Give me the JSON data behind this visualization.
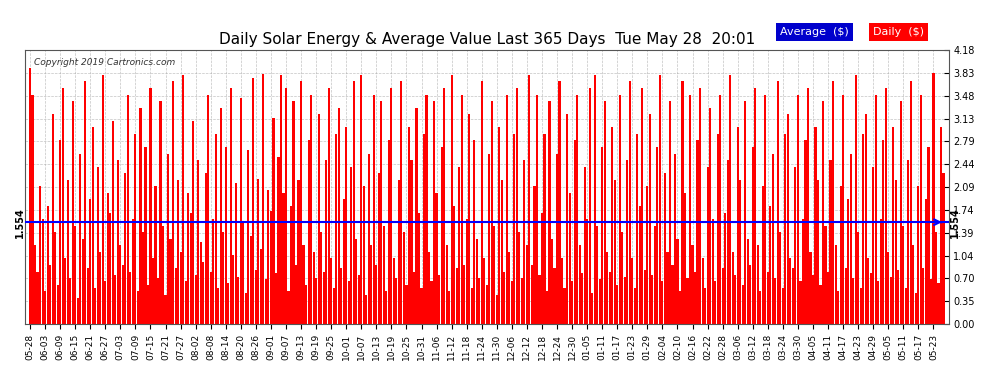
{
  "title": "Daily Solar Energy & Average Value Last 365 Days  Tue May 28  20:01",
  "copyright": "Copyright 2019 Cartronics.com",
  "average_value": 1.554,
  "average_label": "1.554",
  "bar_color": "#FF0000",
  "average_line_color": "#0000FF",
  "background_color": "#FFFFFF",
  "plot_bg_color": "#FFFFFF",
  "grid_color": "#AAAAAA",
  "ylim": [
    0.0,
    4.18
  ],
  "yticks": [
    0.0,
    0.35,
    0.7,
    1.04,
    1.39,
    1.74,
    2.09,
    2.44,
    2.79,
    3.13,
    3.48,
    3.83,
    4.18
  ],
  "legend_avg_color": "#0000CC",
  "legend_daily_color": "#FF0000",
  "legend_text_color": "#FFFFFF",
  "x_labels": [
    "05-28",
    "06-03",
    "06-09",
    "06-15",
    "06-21",
    "06-27",
    "07-03",
    "07-09",
    "07-15",
    "07-21",
    "07-27",
    "08-02",
    "08-08",
    "08-14",
    "08-20",
    "08-26",
    "09-01",
    "09-07",
    "09-13",
    "09-19",
    "09-25",
    "10-01",
    "10-07",
    "10-13",
    "10-19",
    "10-25",
    "10-31",
    "11-06",
    "11-12",
    "11-18",
    "11-24",
    "11-30",
    "12-06",
    "12-12",
    "12-18",
    "12-24",
    "12-30",
    "01-05",
    "01-11",
    "01-17",
    "01-23",
    "01-29",
    "02-04",
    "02-10",
    "02-16",
    "02-22",
    "02-28",
    "03-06",
    "03-12",
    "03-18",
    "03-24",
    "03-30",
    "04-05",
    "04-11",
    "04-17",
    "04-23",
    "04-29",
    "05-05",
    "05-11",
    "05-17",
    "05-23"
  ],
  "daily_values": [
    3.9,
    3.5,
    1.2,
    0.8,
    2.1,
    1.6,
    0.5,
    1.8,
    0.9,
    3.2,
    1.4,
    0.6,
    2.8,
    3.6,
    1.0,
    2.2,
    0.7,
    3.4,
    1.5,
    0.4,
    2.6,
    1.3,
    3.7,
    0.85,
    1.9,
    3.0,
    0.55,
    2.4,
    1.1,
    3.8,
    0.65,
    2.0,
    1.7,
    3.1,
    0.75,
    2.5,
    1.2,
    0.9,
    2.3,
    3.5,
    0.8,
    1.6,
    2.9,
    0.5,
    3.3,
    1.4,
    2.7,
    0.6,
    3.6,
    1.0,
    2.1,
    0.7,
    3.4,
    1.5,
    0.45,
    2.6,
    1.3,
    3.7,
    0.85,
    2.2,
    1.1,
    3.8,
    0.65,
    2.0,
    1.7,
    3.1,
    0.75,
    2.5,
    1.25,
    0.95,
    2.3,
    3.5,
    0.8,
    1.6,
    2.9,
    0.55,
    3.3,
    1.4,
    2.7,
    0.62,
    3.6,
    1.05,
    2.15,
    0.72,
    3.45,
    1.55,
    0.48,
    2.65,
    1.35,
    3.75,
    0.82,
    2.22,
    1.15,
    3.82,
    0.68,
    2.05,
    1.72,
    3.15,
    0.78,
    2.55,
    3.8,
    2.0,
    3.6,
    0.5,
    1.8,
    3.4,
    0.9,
    2.2,
    3.7,
    1.2,
    0.6,
    2.8,
    3.5,
    1.1,
    0.7,
    3.2,
    1.4,
    0.8,
    2.5,
    3.6,
    1.0,
    0.55,
    2.9,
    3.3,
    0.85,
    1.9,
    3.0,
    0.65,
    2.4,
    3.7,
    1.3,
    0.75,
    3.8,
    2.1,
    0.45,
    2.6,
    1.2,
    3.5,
    0.9,
    2.3,
    3.4,
    1.5,
    0.5,
    2.8,
    3.6,
    1.0,
    0.7,
    2.2,
    3.7,
    1.4,
    0.6,
    3.0,
    2.5,
    0.8,
    3.3,
    1.7,
    0.55,
    2.9,
    3.5,
    1.1,
    0.65,
    3.4,
    2.0,
    0.75,
    2.7,
    3.6,
    1.2,
    0.5,
    3.8,
    1.8,
    0.85,
    2.4,
    3.5,
    0.9,
    1.6,
    3.2,
    0.55,
    2.8,
    1.3,
    0.7,
    3.7,
    1.0,
    0.6,
    2.6,
    3.4,
    1.5,
    0.45,
    3.0,
    2.2,
    0.8,
    3.5,
    1.1,
    0.65,
    2.9,
    3.6,
    1.4,
    0.7,
    2.5,
    1.2,
    3.8,
    0.9,
    2.1,
    3.5,
    0.75,
    1.7,
    2.9,
    0.5,
    3.4,
    1.3,
    0.85,
    2.6,
    3.7,
    1.0,
    0.55,
    3.2,
    2.0,
    0.65,
    2.8,
    3.5,
    1.2,
    0.78,
    2.4,
    1.6,
    3.6,
    0.48,
    3.8,
    1.5,
    0.68,
    2.7,
    3.4,
    1.1,
    0.8,
    3.0,
    2.2,
    0.6,
    3.5,
    1.4,
    0.72,
    2.5,
    3.7,
    1.0,
    0.55,
    2.9,
    1.8,
    3.6,
    0.82,
    2.1,
    3.2,
    0.75,
    1.5,
    2.7,
    3.8,
    0.65,
    2.3,
    1.1,
    3.4,
    0.9,
    2.6,
    1.3,
    0.5,
    3.7,
    2.0,
    0.7,
    3.5,
    1.2,
    0.8,
    2.8,
    3.6,
    1.0,
    0.55,
    2.4,
    3.3,
    1.6,
    0.65,
    2.9,
    3.5,
    0.85,
    1.7,
    2.5,
    3.8,
    1.1,
    0.75,
    3.0,
    2.2,
    0.6,
    3.4,
    1.3,
    0.9,
    2.7,
    3.6,
    1.2,
    0.5,
    2.1,
    3.5,
    0.8,
    1.8,
    2.6,
    0.7,
    3.7,
    1.4,
    0.55,
    2.9,
    3.2,
    1.0,
    0.85,
    2.4,
    3.5,
    0.65,
    1.6,
    2.8,
    3.6,
    1.1,
    0.75,
    3.0,
    2.2,
    0.6,
    3.4,
    1.5,
    0.8,
    2.5,
    3.7,
    1.2,
    0.5,
    2.1,
    3.5,
    0.85,
    1.9,
    2.6,
    0.7,
    3.8,
    1.4,
    0.55,
    2.9,
    3.2,
    1.0,
    0.78,
    2.4,
    3.5,
    0.65,
    1.6,
    2.8,
    3.6,
    1.1,
    0.72,
    3.0,
    2.2,
    0.82,
    3.4,
    1.5,
    0.55,
    2.5,
    3.7,
    1.2,
    0.48,
    2.1,
    3.5,
    0.85,
    1.9,
    2.7,
    0.68,
    3.83,
    1.4,
    0.62,
    3.0,
    2.3,
    1.05,
    3.45,
    1.55,
    0.75,
    2.6,
    3.75,
    1.15,
    2.05
  ]
}
